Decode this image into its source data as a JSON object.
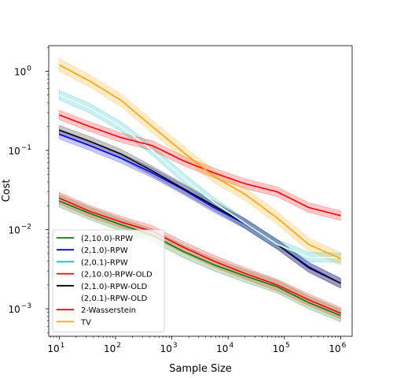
{
  "chart_data": {
    "type": "line",
    "xlabel": "Sample Size",
    "ylabel": "Cost",
    "xscale": "log",
    "yscale": "log",
    "xlim": [
      6.5,
      1600000.0
    ],
    "ylim": [
      0.00045,
      2.1
    ],
    "x_ticks": [
      {
        "value": 10,
        "base": "10",
        "exp": "1"
      },
      {
        "value": 100,
        "base": "10",
        "exp": "2"
      },
      {
        "value": 1000,
        "base": "10",
        "exp": "3"
      },
      {
        "value": 10000,
        "base": "10",
        "exp": "4"
      },
      {
        "value": 100000,
        "base": "10",
        "exp": "5"
      },
      {
        "value": 1000000,
        "base": "10",
        "exp": "6"
      }
    ],
    "y_ticks": [
      {
        "value": 0.001,
        "base": "10",
        "exp": "−3"
      },
      {
        "value": 0.01,
        "base": "10",
        "exp": "−2"
      },
      {
        "value": 0.1,
        "base": "10",
        "exp": "−1"
      },
      {
        "value": 1,
        "base": "10",
        "exp": "0"
      }
    ],
    "legend_position": "lower-left",
    "x": [
      10,
      35,
      125,
      450,
      1600,
      5600,
      20000,
      75000,
      270000,
      1000000
    ],
    "series": [
      {
        "name": "(2,10.0)-RPW",
        "color": "#008000",
        "values": [
          0.023,
          0.016,
          0.0115,
          0.0085,
          0.0053,
          0.0036,
          0.0026,
          0.0019,
          0.0012,
          0.00082
        ],
        "band": 0.2
      },
      {
        "name": "(2,1.0)-RPW",
        "color": "#0000ff",
        "values": [
          0.16,
          0.115,
          0.08,
          0.052,
          0.032,
          0.019,
          0.0118,
          0.0065,
          0.0034,
          0.0021
        ],
        "band": 0.15
      },
      {
        "name": "(2,0.1)-RPW",
        "color": "#00bfbf",
        "values": [
          0.5,
          0.34,
          0.2,
          0.1,
          0.045,
          0.022,
          0.012,
          0.0065,
          0.0045,
          0.0044
        ],
        "band": 0.15
      },
      {
        "name": "(2,10.0)-RPW-OLD",
        "color": "#ff0000",
        "values": [
          0.025,
          0.017,
          0.0125,
          0.0095,
          0.006,
          0.004,
          0.0028,
          0.002,
          0.0013,
          0.00088
        ],
        "band": 0.18
      },
      {
        "name": "(2,1.0)-RPW-OLD",
        "color": "#000000",
        "values": [
          0.18,
          0.13,
          0.09,
          0.055,
          0.033,
          0.02,
          0.012,
          0.0065,
          0.0033,
          0.0021
        ],
        "band": 0.15
      },
      {
        "name": "(2,0.1)-RPW-OLD",
        "color": "#ffffff",
        "values": [
          0.5,
          0.34,
          0.2,
          0.1,
          0.045,
          0.022,
          0.012,
          0.0065,
          0.0045,
          0.0044
        ],
        "band": 0.0
      },
      {
        "name": "2-Wasserstein",
        "color": "#ff0000",
        "values": [
          0.28,
          0.2,
          0.145,
          0.115,
          0.074,
          0.052,
          0.038,
          0.03,
          0.019,
          0.015
        ],
        "band": 0.15
      },
      {
        "name": "TV",
        "color": "#ffa500",
        "values": [
          1.2,
          0.75,
          0.43,
          0.2,
          0.095,
          0.047,
          0.028,
          0.014,
          0.0065,
          0.0043
        ],
        "band": 0.2
      }
    ]
  }
}
